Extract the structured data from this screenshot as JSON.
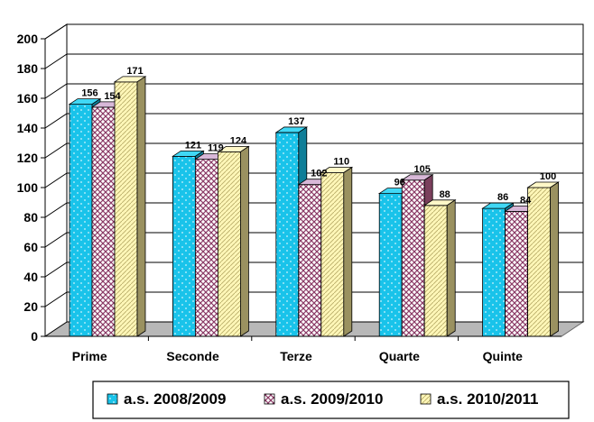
{
  "chart_data": {
    "type": "bar",
    "categories": [
      "Prime",
      "Seconde",
      "Terze",
      "Quarte",
      "Quinte"
    ],
    "series": [
      {
        "name": "a.s. 2008/2009",
        "values": [
          156,
          121,
          137,
          96,
          86
        ]
      },
      {
        "name": "a.s. 2009/2010",
        "values": [
          154,
          119,
          102,
          105,
          84
        ]
      },
      {
        "name": "a.s. 2010/2011",
        "values": [
          171,
          124,
          110,
          88,
          100
        ]
      }
    ],
    "y_ticks": [
      0,
      20,
      40,
      60,
      80,
      100,
      120,
      140,
      160,
      180,
      200
    ],
    "ylim": [
      0,
      200
    ],
    "grid": true,
    "three_d": true,
    "legend_position": "bottom",
    "colors": {
      "series": [
        "#19c3ea",
        "#c0a0c0",
        "#f5f0a8"
      ],
      "series_top": [
        "#40d8f5",
        "#d8b8d8",
        "#fff8c8"
      ],
      "series_side": [
        "#0f7e98",
        "#7a3f5c",
        "#9a9160"
      ],
      "floor": "#b8b8b8",
      "wall": "#ffffff"
    }
  }
}
